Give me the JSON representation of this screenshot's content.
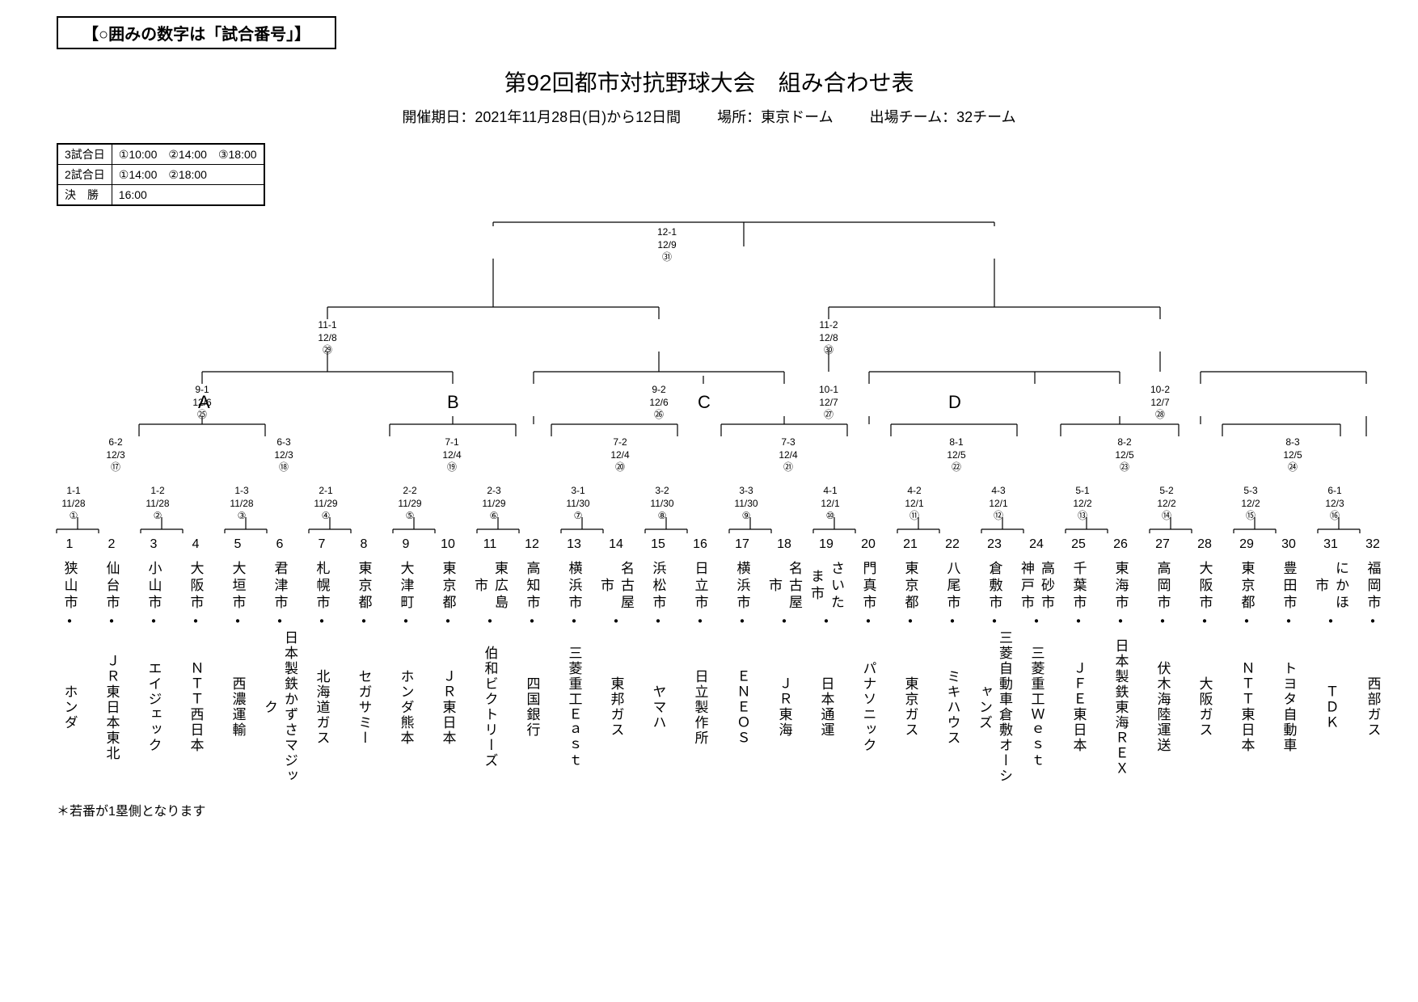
{
  "header_note": "【○囲みの数字は「試合番号」】",
  "title": "第92回都市対抗野球大会　組み合わせ表",
  "subtitle_period": "開催期日：2021年11月28日(日)から12日間",
  "subtitle_venue": "場所：東京ドーム",
  "subtitle_teams": "出場チーム：32チーム",
  "schedule": {
    "rows": [
      [
        "3試合日",
        "①10:00　②14:00　③18:00"
      ],
      [
        "2試合日",
        "①14:00　②18:00"
      ],
      [
        "決　勝",
        "  16:00"
      ]
    ]
  },
  "seeds": {
    "A": "A",
    "B": "B",
    "C": "C",
    "D": "D"
  },
  "final": {
    "score": "12-1",
    "date": "12/9",
    "game": "㉛"
  },
  "semi": [
    {
      "score": "11-1",
      "date": "12/8",
      "game": "㉙"
    },
    {
      "score": "11-2",
      "date": "12/8",
      "game": "㉚"
    }
  ],
  "qf": [
    {
      "score": "9-1",
      "date": "12/6",
      "game": "㉕"
    },
    {
      "score": "9-2",
      "date": "12/6",
      "game": "㉖"
    },
    {
      "score": "10-1",
      "date": "12/7",
      "game": "㉗"
    },
    {
      "score": "10-2",
      "date": "12/7",
      "game": "㉘"
    }
  ],
  "r3": [
    {
      "score": "6-2",
      "date": "12/3",
      "game": "⑰"
    },
    {
      "score": "6-3",
      "date": "12/3",
      "game": "⑱"
    },
    {
      "score": "7-1",
      "date": "12/4",
      "game": "⑲"
    },
    {
      "score": "7-2",
      "date": "12/4",
      "game": "⑳"
    },
    {
      "score": "7-3",
      "date": "12/4",
      "game": "㉑"
    },
    {
      "score": "8-1",
      "date": "12/5",
      "game": "㉒"
    },
    {
      "score": "8-2",
      "date": "12/5",
      "game": "㉓"
    },
    {
      "score": "8-3",
      "date": "12/5",
      "game": "㉔"
    }
  ],
  "r2": [
    {
      "score": "1-1",
      "date": "11/28",
      "game": "①"
    },
    {
      "score": "1-2",
      "date": "11/28",
      "game": "②"
    },
    {
      "score": "1-3",
      "date": "11/28",
      "game": "③"
    },
    {
      "score": "2-1",
      "date": "11/29",
      "game": "④"
    },
    {
      "score": "2-2",
      "date": "11/29",
      "game": "⑤"
    },
    {
      "score": "2-3",
      "date": "11/29",
      "game": "⑥"
    },
    {
      "score": "3-1",
      "date": "11/30",
      "game": "⑦"
    },
    {
      "score": "3-2",
      "date": "11/30",
      "game": "⑧"
    },
    {
      "score": "3-3",
      "date": "11/30",
      "game": "⑨"
    },
    {
      "score": "4-1",
      "date": "12/1",
      "game": "⑩"
    },
    {
      "score": "4-2",
      "date": "12/1",
      "game": "⑪"
    },
    {
      "score": "4-3",
      "date": "12/1",
      "game": "⑫"
    },
    {
      "score": "5-1",
      "date": "12/2",
      "game": "⑬"
    },
    {
      "score": "5-2",
      "date": "12/2",
      "game": "⑭"
    },
    {
      "score": "5-3",
      "date": "12/2",
      "game": "⑮"
    },
    {
      "score": "6-1",
      "date": "12/3",
      "game": "⑯"
    }
  ],
  "teams": [
    {
      "n": "1",
      "city": "狭山市",
      "name": "ホンダ"
    },
    {
      "n": "2",
      "city": "仙台市",
      "name": "ＪＲ東日本東北"
    },
    {
      "n": "3",
      "city": "小山市",
      "name": "エイジェック"
    },
    {
      "n": "4",
      "city": "大阪市",
      "name": "ＮＴＴ西日本"
    },
    {
      "n": "5",
      "city": "大垣市",
      "name": "西濃運輸"
    },
    {
      "n": "6",
      "city": "君津市",
      "name": "日本製鉄かずさマジック"
    },
    {
      "n": "7",
      "city": "札幌市",
      "name": "北海道ガス"
    },
    {
      "n": "8",
      "city": "東京都",
      "name": "セガサミー"
    },
    {
      "n": "9",
      "city": "大津町",
      "name": "ホンダ熊本"
    },
    {
      "n": "10",
      "city": "東京都",
      "name": "ＪＲ東日本"
    },
    {
      "n": "11",
      "city": "東広島市",
      "name": "伯和ビクトリーズ"
    },
    {
      "n": "12",
      "city": "高知市",
      "name": "四国銀行"
    },
    {
      "n": "13",
      "city": "横浜市",
      "name": "三菱重工Ｅａｓｔ"
    },
    {
      "n": "14",
      "city": "名古屋市",
      "name": "東邦ガス"
    },
    {
      "n": "15",
      "city": "浜松市",
      "name": "ヤマハ"
    },
    {
      "n": "16",
      "city": "日立市",
      "name": "日立製作所"
    },
    {
      "n": "17",
      "city": "横浜市",
      "name": "ＥＮＥＯＳ"
    },
    {
      "n": "18",
      "city": "名古屋市",
      "name": "ＪＲ東海"
    },
    {
      "n": "19",
      "city": "さいたま市",
      "name": "日本通運"
    },
    {
      "n": "20",
      "city": "門真市",
      "name": "パナソニック"
    },
    {
      "n": "21",
      "city": "東京都",
      "name": "東京ガス"
    },
    {
      "n": "22",
      "city": "八尾市",
      "name": "ミキハウス"
    },
    {
      "n": "23",
      "city": "倉敷市",
      "name": "三菱自動車倉敷オーシャンズ"
    },
    {
      "n": "24",
      "city": "高砂市神戸市",
      "name": "三菱重工Ｗｅｓｔ"
    },
    {
      "n": "25",
      "city": "千葉市",
      "name": "ＪＦＥ東日本"
    },
    {
      "n": "26",
      "city": "東海市",
      "name": "日本製鉄東海ＲＥＸ"
    },
    {
      "n": "27",
      "city": "高岡市",
      "name": "伏木海陸運送"
    },
    {
      "n": "28",
      "city": "大阪市",
      "name": "大阪ガス"
    },
    {
      "n": "29",
      "city": "東京都",
      "name": "ＮＴＴ東日本"
    },
    {
      "n": "30",
      "city": "豊田市",
      "name": "トヨタ自動車"
    },
    {
      "n": "31",
      "city": "にかほ市",
      "name": "ＴＤＫ"
    },
    {
      "n": "32",
      "city": "福岡市",
      "name": "西部ガス"
    }
  ],
  "footer_note": "＊若番が1塁側となります"
}
